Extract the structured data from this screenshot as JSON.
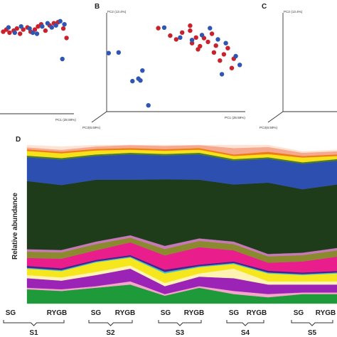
{
  "panels": {
    "A": {
      "letter": "",
      "pc1_label": "PC1 (28.59%)"
    },
    "B": {
      "letter": "B",
      "pc1_label": "PC1 (28.59%)",
      "pc2_label": "PC2 (13.4%)",
      "pc3_label": "PC3(6.59%)"
    },
    "C": {
      "letter": "C",
      "pc2_label": "PC2 (13.4%)",
      "pc3_label": "PC3(6.59%)"
    },
    "D": {
      "letter": "D",
      "ylabel": "Relative abundance"
    }
  },
  "point_colors": {
    "red": "#c8232c",
    "blue": "#2f56b3"
  },
  "chart_data": [
    {
      "panel": "A",
      "type": "scatter",
      "xlabel": "PC1 (28.59%)",
      "series": [
        {
          "color": "#c8232c",
          "points": [
            [
              0.3,
              0.78
            ],
            [
              0.6,
              0.8
            ],
            [
              0.9,
              0.77
            ],
            [
              1.3,
              0.79
            ],
            [
              1.6,
              0.81
            ],
            [
              1.9,
              0.76
            ],
            [
              2.2,
              0.8
            ],
            [
              2.6,
              0.82
            ],
            [
              2.9,
              0.78
            ],
            [
              3.3,
              0.8
            ],
            [
              3.6,
              0.83
            ],
            [
              3.9,
              0.85
            ],
            [
              4.3,
              0.79
            ],
            [
              4.7,
              0.84
            ],
            [
              5.1,
              0.86
            ],
            [
              5.5,
              0.87
            ],
            [
              6.0,
              0.81
            ],
            [
              6.3,
              0.72
            ]
          ]
        },
        {
          "color": "#2f56b3",
          "points": [
            [
              0.8,
              0.82
            ],
            [
              1.4,
              0.77
            ],
            [
              2.0,
              0.83
            ],
            [
              2.8,
              0.81
            ],
            [
              3.1,
              0.77
            ],
            [
              3.5,
              0.76
            ],
            [
              4.0,
              0.83
            ],
            [
              4.5,
              0.86
            ],
            [
              4.9,
              0.82
            ],
            [
              5.3,
              0.84
            ],
            [
              5.7,
              0.88
            ],
            [
              6.1,
              0.85
            ],
            [
              5.9,
              0.52
            ]
          ]
        }
      ]
    },
    {
      "panel": "B",
      "type": "scatter",
      "xlabel": "PC1 (28.59%)",
      "ylabel": "PC2 (13.4%)",
      "zlabel": "PC3(6.59%)",
      "series": [
        {
          "color": "#c8232c",
          "points": [
            [
              0.5,
              0.44
            ],
            [
              1.1,
              0.32
            ],
            [
              1.4,
              0.26
            ],
            [
              1.7,
              0.37
            ],
            [
              2.1,
              0.4
            ],
            [
              2.4,
              0.29
            ],
            [
              2.2,
              0.2
            ],
            [
              2.6,
              0.15
            ],
            [
              2.5,
              0.1
            ],
            [
              2.8,
              0.28
            ],
            [
              3.0,
              0.22
            ],
            [
              3.2,
              0.35
            ],
            [
              3.3,
              0.05
            ],
            [
              3.4,
              0.16
            ],
            [
              3.6,
              -0.08
            ],
            [
              3.8,
              0.02
            ],
            [
              4.0,
              0.12
            ],
            [
              4.2,
              -0.2
            ],
            [
              4.3,
              -0.05
            ],
            [
              2.1,
              0.48
            ]
          ]
        },
        {
          "color": "#2f56b3",
          "points": [
            [
              -2.0,
              0.04
            ],
            [
              -1.5,
              0.05
            ],
            [
              -0.3,
              -0.24
            ],
            [
              -0.8,
              -0.41
            ],
            [
              -0.5,
              -0.37
            ],
            [
              -0.4,
              -0.4
            ],
            [
              0.0,
              -0.8
            ],
            [
              0.8,
              0.45
            ],
            [
              1.6,
              0.29
            ],
            [
              2.2,
              0.25
            ],
            [
              2.7,
              0.33
            ],
            [
              3.1,
              0.44
            ],
            [
              3.5,
              0.26
            ],
            [
              3.9,
              0.2
            ],
            [
              4.4,
              -0.01
            ],
            [
              3.7,
              -0.3
            ],
            [
              4.6,
              -0.15
            ]
          ]
        }
      ]
    },
    {
      "panel": "D",
      "type": "area",
      "stacked": true,
      "ylabel": "Relative abundance",
      "x": [
        0,
        1,
        2,
        3,
        4,
        5,
        6,
        7,
        8,
        9
      ],
      "tick_labels": [
        "SG",
        "RYGB",
        "SG",
        "RYGB",
        "SG",
        "RYGB",
        "SG",
        "RYGB",
        "SG",
        "RYGB"
      ],
      "groups": [
        {
          "name": "S1",
          "members": [
            0,
            1
          ]
        },
        {
          "name": "S2",
          "members": [
            2,
            3
          ]
        },
        {
          "name": "S3",
          "members": [
            4,
            5
          ]
        },
        {
          "name": "S4",
          "members": [
            6,
            7
          ]
        },
        {
          "name": "S5",
          "members": [
            8,
            9
          ]
        }
      ],
      "ylim": [
        0,
        1
      ],
      "series": [
        {
          "color": "#1f9a3b",
          "values": [
            0.09,
            0.08,
            0.1,
            0.12,
            0.05,
            0.1,
            0.06,
            0.04,
            0.06,
            0.06
          ]
        },
        {
          "color": "#f5a6c8",
          "values": [
            0.01,
            0.01,
            0.01,
            0.02,
            0.01,
            0.01,
            0.02,
            0.02,
            0.01,
            0.01
          ]
        },
        {
          "color": "#9b23b6",
          "values": [
            0.06,
            0.055,
            0.07,
            0.08,
            0.05,
            0.06,
            0.08,
            0.06,
            0.05,
            0.05
          ]
        },
        {
          "color": "#fff3b3",
          "values": [
            0.02,
            0.02,
            0.02,
            0.02,
            0.02,
            0.02,
            0.06,
            0.02,
            0.02,
            0.02
          ]
        },
        {
          "color": "#f5e61e",
          "values": [
            0.04,
            0.04,
            0.06,
            0.05,
            0.06,
            0.04,
            0.03,
            0.05,
            0.04,
            0.05
          ]
        },
        {
          "color": "#3ec1d3",
          "values": [
            0.006,
            0.006,
            0.006,
            0.006,
            0.01,
            0.006,
            0.006,
            0.006,
            0.006,
            0.006
          ]
        },
        {
          "color": "#4d1f8a",
          "values": [
            0.012,
            0.012,
            0.01,
            0.01,
            0.014,
            0.01,
            0.01,
            0.012,
            0.01,
            0.01
          ]
        },
        {
          "color": "#e91e8c",
          "values": [
            0.05,
            0.06,
            0.06,
            0.08,
            0.09,
            0.11,
            0.07,
            0.05,
            0.07,
            0.09
          ]
        },
        {
          "color": "#8c8a2e",
          "values": [
            0.04,
            0.04,
            0.04,
            0.03,
            0.04,
            0.04,
            0.04,
            0.04,
            0.04,
            0.04
          ]
        },
        {
          "color": "#c678b8",
          "values": [
            0.015,
            0.015,
            0.015,
            0.015,
            0.02,
            0.015,
            0.015,
            0.015,
            0.015,
            0.015
          ]
        },
        {
          "color": "#1e3b1a",
          "values": [
            0.43,
            0.41,
            0.39,
            0.35,
            0.42,
            0.37,
            0.36,
            0.45,
            0.4,
            0.4
          ]
        },
        {
          "color": "#2c4fb0",
          "values": [
            0.15,
            0.16,
            0.15,
            0.16,
            0.15,
            0.16,
            0.15,
            0.15,
            0.16,
            0.15
          ]
        },
        {
          "color": "#4a7a2a",
          "values": [
            0.01,
            0.01,
            0.01,
            0.01,
            0.01,
            0.01,
            0.01,
            0.01,
            0.01,
            0.01
          ]
        },
        {
          "color": "#f7e11b",
          "values": [
            0.03,
            0.03,
            0.025,
            0.02,
            0.02,
            0.02,
            0.02,
            0.02,
            0.03,
            0.02
          ]
        },
        {
          "color": "#ef7a1a",
          "values": [
            0.01,
            0.01,
            0.01,
            0.01,
            0.01,
            0.01,
            0.01,
            0.015,
            0.01,
            0.01
          ]
        },
        {
          "color": "#f5a98f",
          "values": [
            0.012,
            0.012,
            0.015,
            0.02,
            0.02,
            0.02,
            0.04,
            0.03,
            0.02,
            0.02
          ]
        },
        {
          "color": "#fde3d4",
          "values": [
            0.015,
            0.02,
            0.009,
            0.007,
            0.006,
            0.009,
            0.019,
            0.012,
            0.009,
            0.009
          ]
        }
      ]
    }
  ]
}
